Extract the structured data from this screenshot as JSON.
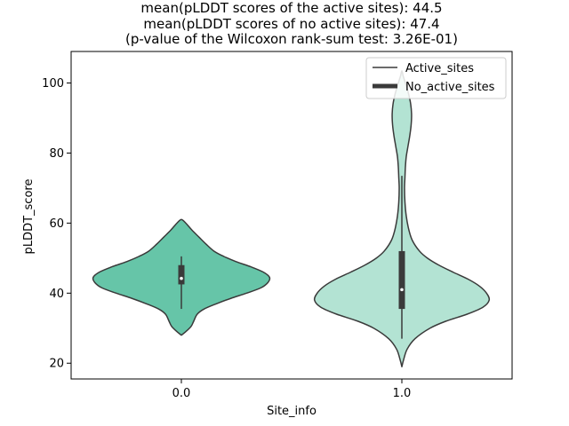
{
  "chart_data": {
    "type": "violin",
    "title_lines": [
      "mean(pLDDT scores of the active sites): 44.5",
      "mean(pLDDT scores of no active sites): 47.4",
      "(p-value of the Wilcoxon rank-sum test: 3.26E-01)"
    ],
    "xlabel": "Site_info",
    "ylabel": "pLDDT_score",
    "ylim": [
      15.5,
      109
    ],
    "yticks": [
      20,
      40,
      60,
      80,
      100
    ],
    "categories": [
      "0.0",
      "1.0"
    ],
    "legend": {
      "location": "upper right",
      "entries": [
        {
          "label": "Active_sites",
          "style": "thin"
        },
        {
          "label": "No_active_sites",
          "style": "thick"
        }
      ]
    },
    "series": [
      {
        "category": "0.0",
        "color": "#66c5a8",
        "box": {
          "min": 35.5,
          "q1": 42.5,
          "median": 44.2,
          "q3": 48.0,
          "max": 50.5
        },
        "density": [
          [
            28.0,
            0.0
          ],
          [
            29.0,
            0.05
          ],
          [
            30.5,
            0.11
          ],
          [
            32.0,
            0.14
          ],
          [
            34.0,
            0.18
          ],
          [
            35.5,
            0.26
          ],
          [
            37.0,
            0.4
          ],
          [
            38.5,
            0.56
          ],
          [
            40.0,
            0.74
          ],
          [
            41.5,
            0.9
          ],
          [
            43.0,
            0.98
          ],
          [
            44.5,
            1.0
          ],
          [
            46.0,
            0.93
          ],
          [
            47.5,
            0.79
          ],
          [
            49.0,
            0.62
          ],
          [
            50.5,
            0.48
          ],
          [
            52.0,
            0.37
          ],
          [
            54.0,
            0.28
          ],
          [
            56.0,
            0.2
          ],
          [
            58.0,
            0.12
          ],
          [
            60.0,
            0.05
          ],
          [
            61.0,
            0.0
          ]
        ]
      },
      {
        "category": "1.0",
        "color": "#b3e3d3",
        "box": {
          "min": 27.0,
          "q1": 35.5,
          "median": 41.0,
          "q3": 52.0,
          "max": 73.5
        },
        "density": [
          [
            19.0,
            0.0
          ],
          [
            21.0,
            0.02
          ],
          [
            24.0,
            0.06
          ],
          [
            27.0,
            0.15
          ],
          [
            30.0,
            0.32
          ],
          [
            32.0,
            0.5
          ],
          [
            34.0,
            0.74
          ],
          [
            36.0,
            0.92
          ],
          [
            38.0,
            0.99
          ],
          [
            40.0,
            0.96
          ],
          [
            42.0,
            0.88
          ],
          [
            44.0,
            0.75
          ],
          [
            46.0,
            0.58
          ],
          [
            48.0,
            0.42
          ],
          [
            50.0,
            0.29
          ],
          [
            52.0,
            0.2
          ],
          [
            55.0,
            0.12
          ],
          [
            58.0,
            0.08
          ],
          [
            62.0,
            0.05
          ],
          [
            66.0,
            0.035
          ],
          [
            70.0,
            0.03
          ],
          [
            73.0,
            0.035
          ],
          [
            76.0,
            0.04
          ],
          [
            79.0,
            0.05
          ],
          [
            82.0,
            0.07
          ],
          [
            85.0,
            0.09
          ],
          [
            88.0,
            0.105
          ],
          [
            91.0,
            0.11
          ],
          [
            94.0,
            0.1
          ],
          [
            97.0,
            0.075
          ],
          [
            100.0,
            0.04
          ],
          [
            102.0,
            0.015
          ],
          [
            103.5,
            0.0
          ]
        ]
      }
    ]
  }
}
